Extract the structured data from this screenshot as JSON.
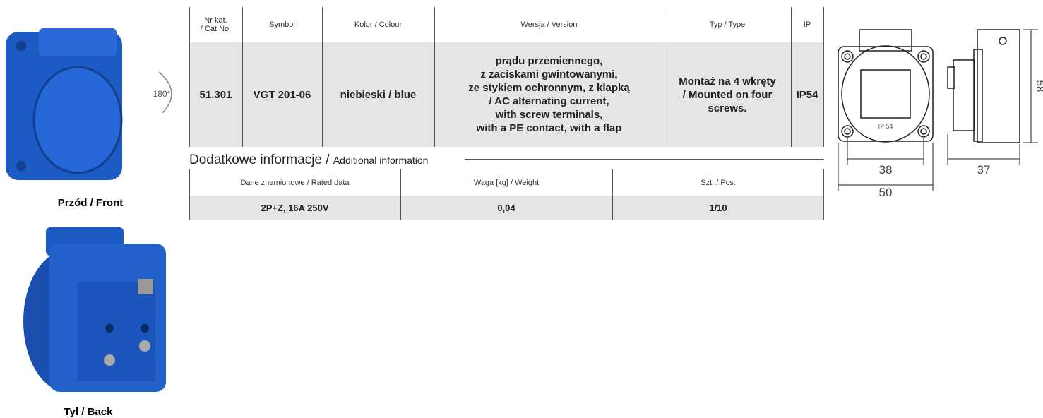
{
  "images": {
    "front_caption": "Przód / Front",
    "back_caption": "Tył / Back",
    "rotation": "180°"
  },
  "table": {
    "headers": [
      "Nr kat.\n/ Cat No.",
      "Symbol",
      "Kolor / Colour",
      "Wersja / Version",
      "Typ / Type",
      "IP"
    ],
    "row": [
      "51.301",
      "VGT 201-06",
      "niebieski / blue",
      "prądu przemiennego,\nz zaciskami gwintowanymi,\nze stykiem ochronnym, z klapką\n/ AC alternating current,\nwith screw terminals,\nwith a PE contact, with a flap",
      "Montaż na 4 wkręty\n/ Mounted on four\nscrews.",
      "IP54"
    ]
  },
  "additional": {
    "title": "Dodatkowe informacje /",
    "subtitle": "Additional information",
    "headers": [
      "Dane znamionowe / Rated data",
      "Waga [kg] / Weight",
      "Szt. / Pcs."
    ],
    "row": [
      "2P+Z, 16A 250V",
      "0,04",
      "1/10"
    ]
  },
  "drawing": {
    "label": "IP 54",
    "inner_width": "38",
    "outer_width": "50",
    "depth": "37",
    "height": "58"
  }
}
